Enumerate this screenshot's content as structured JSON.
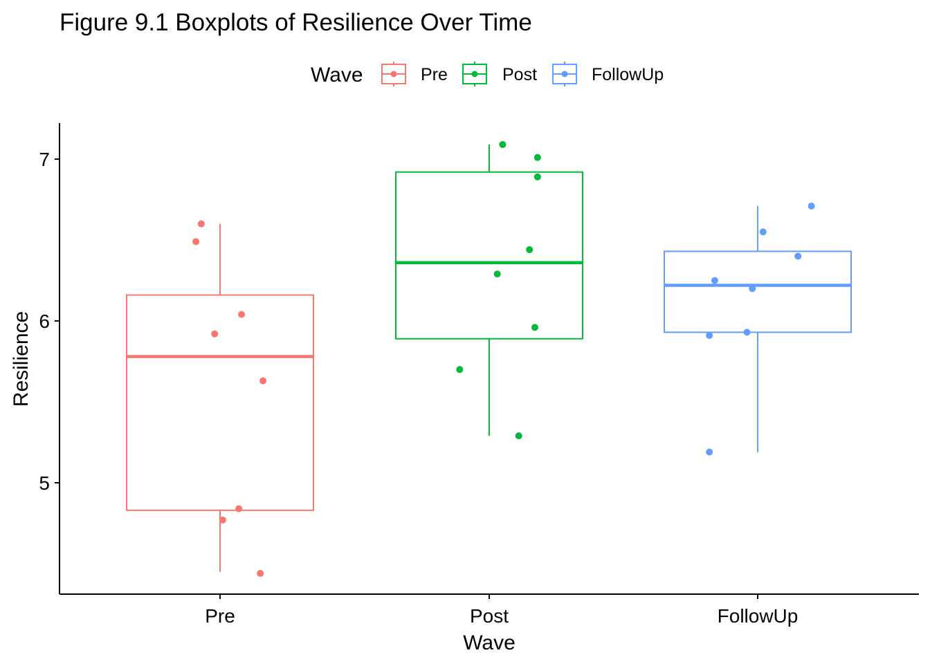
{
  "chart_data": {
    "type": "boxplot",
    "title": "Figure 9.1 Boxplots of Resilience Over Time",
    "xlabel": "Wave",
    "ylabel": "Resilience",
    "ylim": [
      4.33,
      7.22
    ],
    "yticks": [
      5,
      6,
      7
    ],
    "grid": false,
    "legend": {
      "title": "Wave",
      "position": "top",
      "entries": [
        "Pre",
        "Post",
        "FollowUp"
      ]
    },
    "categories": [
      "Pre",
      "Post",
      "FollowUp"
    ],
    "series": [
      {
        "name": "Pre",
        "color": "#F8766D",
        "box": {
          "whisker_low": 4.45,
          "q1": 4.83,
          "median": 5.78,
          "q3": 6.16,
          "whisker_high": 6.6
        },
        "points": [
          {
            "jitter": -0.07,
            "y": 6.6
          },
          {
            "jitter": -0.09,
            "y": 6.49
          },
          {
            "jitter": 0.08,
            "y": 6.04
          },
          {
            "jitter": -0.02,
            "y": 5.92
          },
          {
            "jitter": 0.16,
            "y": 5.63
          },
          {
            "jitter": 0.07,
            "y": 4.84
          },
          {
            "jitter": 0.01,
            "y": 4.77
          },
          {
            "jitter": 0.15,
            "y": 4.44
          }
        ]
      },
      {
        "name": "Post",
        "color": "#00BA38",
        "box": {
          "whisker_low": 5.29,
          "q1": 5.89,
          "median": 6.36,
          "q3": 6.92,
          "whisker_high": 7.09
        },
        "points": [
          {
            "jitter": 0.05,
            "y": 7.09
          },
          {
            "jitter": 0.18,
            "y": 7.01
          },
          {
            "jitter": 0.18,
            "y": 6.89
          },
          {
            "jitter": 0.15,
            "y": 6.44
          },
          {
            "jitter": 0.03,
            "y": 6.29
          },
          {
            "jitter": 0.17,
            "y": 5.96
          },
          {
            "jitter": -0.11,
            "y": 5.7
          },
          {
            "jitter": 0.11,
            "y": 5.29
          }
        ]
      },
      {
        "name": "FollowUp",
        "color": "#619CFF",
        "box": {
          "whisker_low": 5.19,
          "q1": 5.93,
          "median": 6.22,
          "q3": 6.43,
          "whisker_high": 6.71
        },
        "points": [
          {
            "jitter": 0.2,
            "y": 6.71
          },
          {
            "jitter": 0.02,
            "y": 6.55
          },
          {
            "jitter": 0.15,
            "y": 6.4
          },
          {
            "jitter": -0.16,
            "y": 6.25
          },
          {
            "jitter": -0.02,
            "y": 6.2
          },
          {
            "jitter": -0.04,
            "y": 5.93
          },
          {
            "jitter": -0.18,
            "y": 5.91
          },
          {
            "jitter": -0.18,
            "y": 5.19
          }
        ]
      }
    ]
  }
}
